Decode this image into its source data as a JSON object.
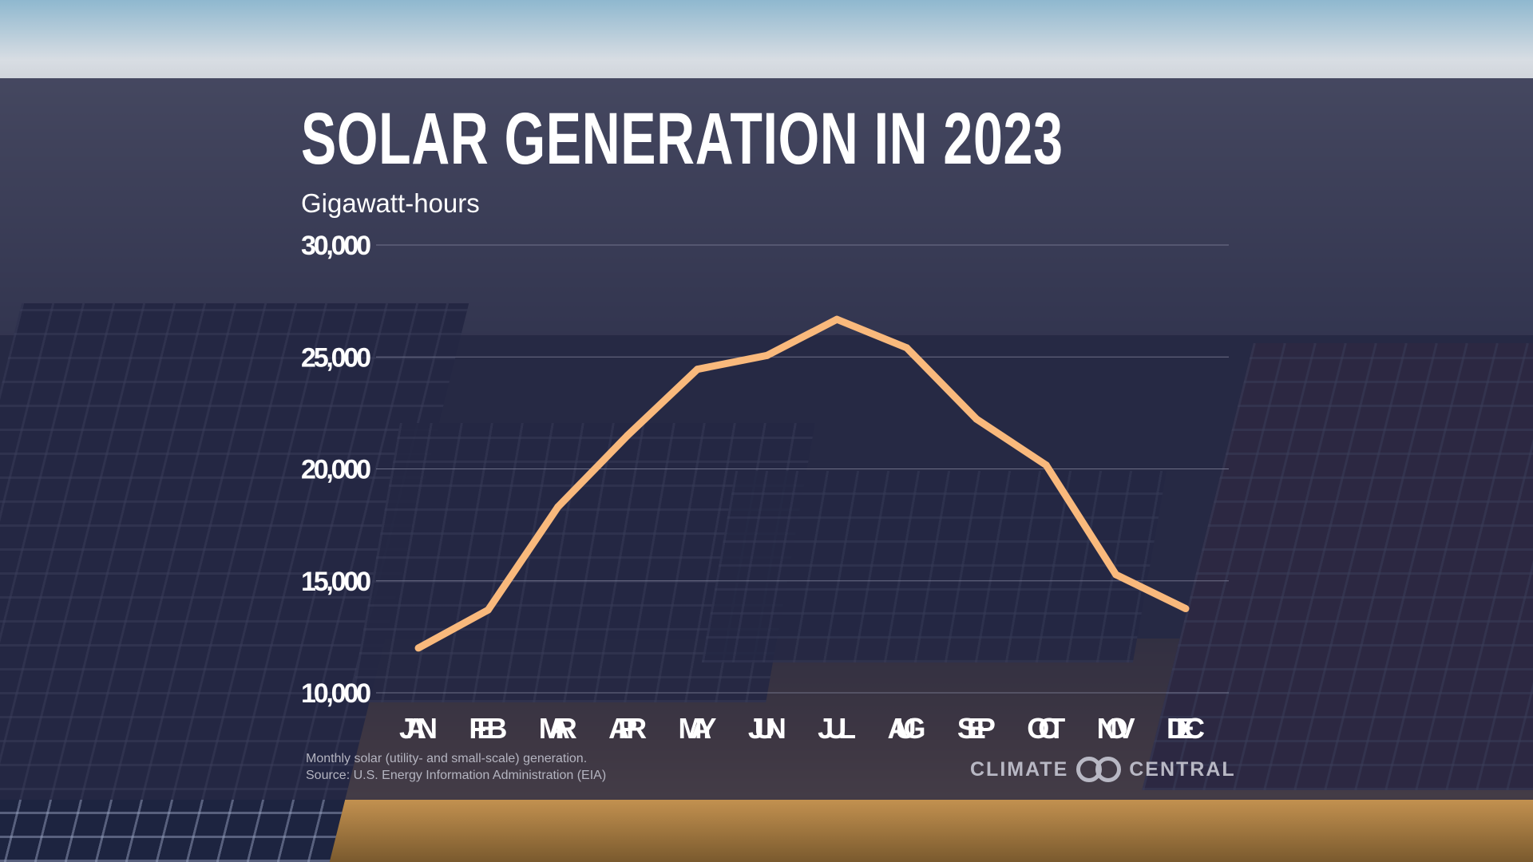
{
  "chart_data": {
    "type": "line",
    "title": "SOLAR GENERATION IN 2023",
    "ylabel": "Gigawatt-hours",
    "xlabel": "",
    "categories": [
      "JAN",
      "FEB",
      "MAR",
      "APR",
      "MAY",
      "JUN",
      "JUL",
      "AUG",
      "SEP",
      "OCT",
      "NOV",
      "DEC"
    ],
    "values": [
      12000,
      13700,
      18300,
      21500,
      24450,
      25070,
      26680,
      25410,
      22230,
      20170,
      15280,
      13760
    ],
    "ylim": [
      10000,
      30000
    ],
    "yticks": [
      10000,
      15000,
      20000,
      25000,
      30000
    ],
    "ytick_labels": [
      "10,000",
      "15,000",
      "20,000",
      "25,000",
      "30,000"
    ],
    "grid": true,
    "line_color": "#f9b97c",
    "grid_color": "#8a8ca3"
  },
  "footer": {
    "note": "Monthly solar (utility- and small-scale) generation.",
    "source": "Source: U.S. Energy Information Administration (EIA)",
    "logo_left": "CLIMATE",
    "logo_right": "CENTRAL"
  }
}
